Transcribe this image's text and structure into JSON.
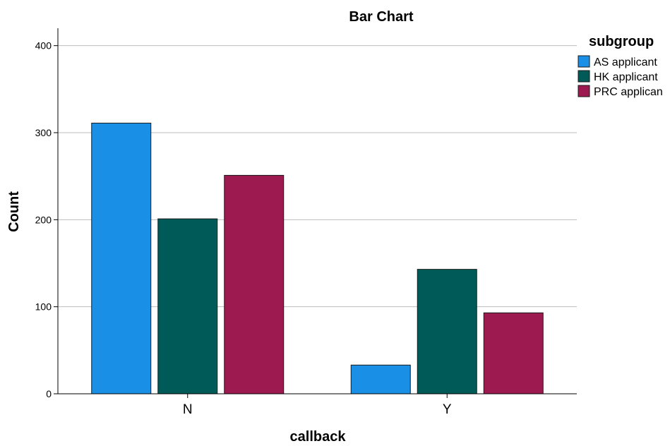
{
  "chart_data": {
    "type": "bar",
    "title": "Bar Chart",
    "xlabel": "callback",
    "ylabel": "Count",
    "categories": [
      "N",
      "Y"
    ],
    "series": [
      {
        "name": "AS applicant",
        "values": [
          311,
          33
        ],
        "color": "#1a8fe6"
      },
      {
        "name": "HK applicant",
        "values": [
          201,
          143
        ],
        "color": "#005a57"
      },
      {
        "name": "PRC applican",
        "values": [
          251,
          93
        ],
        "color": "#9c1a4f"
      }
    ],
    "ylim": [
      0,
      420
    ],
    "yticks": [
      0,
      100,
      200,
      300,
      400
    ],
    "grid": true,
    "legend": {
      "title": "subgroup",
      "placement": "top-right"
    }
  }
}
